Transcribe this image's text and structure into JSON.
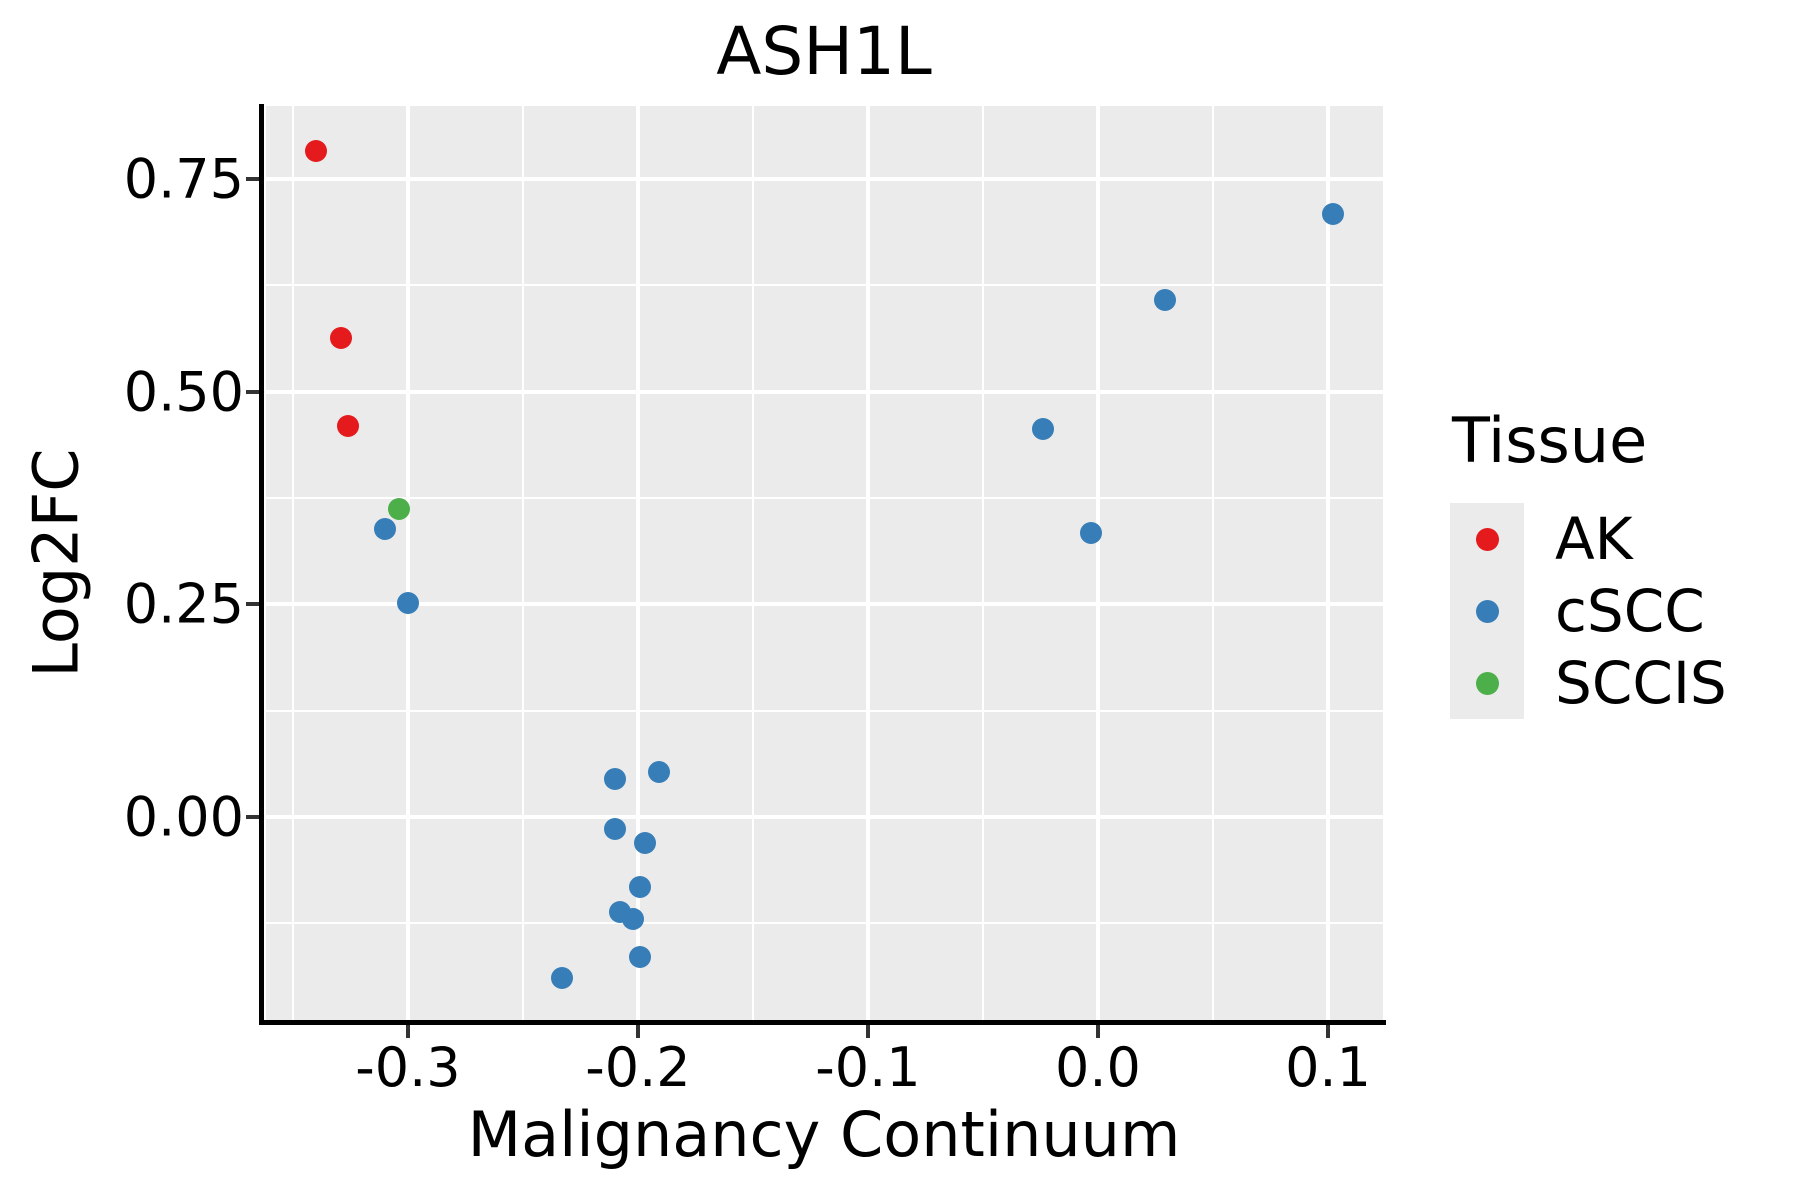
{
  "title": "ASH1L",
  "colors": {
    "panel_background": "#EBEBEB",
    "gridline": "#FFFFFF",
    "axis_line": "#000000",
    "tick_mark": "#333333",
    "text": "#000000",
    "ak_red": "#E41A1C",
    "cscc_blue": "#377EB8",
    "sccis_green": "#4DAF4A"
  },
  "axes": {
    "x": {
      "title": "Malignancy Continuum",
      "tick_labels": [
        "-0.3",
        "-0.2",
        "-0.1",
        "0.0",
        "0.1"
      ],
      "tick_values": [
        -0.3,
        -0.2,
        -0.1,
        0.0,
        0.1
      ],
      "minor_values": [
        -0.35,
        -0.25,
        -0.15,
        -0.05,
        0.05
      ]
    },
    "y": {
      "title": "Log2FC",
      "tick_labels": [
        "0.00",
        "0.25",
        "0.50",
        "0.75"
      ],
      "tick_values": [
        0.0,
        0.25,
        0.5,
        0.75
      ],
      "minor_values": [
        -0.125,
        0.125,
        0.375,
        0.625
      ]
    }
  },
  "legend": {
    "title": "Tissue",
    "entries": [
      {
        "label": "AK",
        "color": "#E41A1C"
      },
      {
        "label": "cSCC",
        "color": "#377EB8"
      },
      {
        "label": "SCCIS",
        "color": "#4DAF4A"
      }
    ]
  },
  "chart_data": {
    "type": "scatter",
    "title": "ASH1L",
    "xlabel": "Malignancy Continuum",
    "ylabel": "Log2FC",
    "xlim": [
      -0.3617,
      0.1239
    ],
    "ylim": [
      -0.2385,
      0.8355
    ],
    "grid": true,
    "legend_position": "right",
    "legend_title": "Tissue",
    "series": [
      {
        "name": "cSCC",
        "color": "#377EB8",
        "points": [
          [
            -0.31,
            0.339
          ],
          [
            -0.3,
            0.251
          ],
          [
            -0.233,
            -0.189
          ],
          [
            -0.21,
            0.045
          ],
          [
            -0.21,
            -0.014
          ],
          [
            -0.202,
            -0.12
          ],
          [
            -0.208,
            -0.112
          ],
          [
            -0.199,
            -0.082
          ],
          [
            -0.199,
            -0.164
          ],
          [
            -0.197,
            -0.031
          ],
          [
            -0.191,
            0.053
          ],
          [
            -0.024,
            0.456
          ],
          [
            -0.003,
            0.334
          ],
          [
            0.029,
            0.608
          ],
          [
            0.102,
            0.709
          ]
        ]
      },
      {
        "name": "AK",
        "color": "#E41A1C",
        "points": [
          [
            -0.34,
            0.783
          ],
          [
            -0.329,
            0.563
          ],
          [
            -0.326,
            0.46
          ]
        ]
      },
      {
        "name": "SCCIS",
        "color": "#4DAF4A",
        "points": [
          [
            -0.304,
            0.362
          ]
        ]
      }
    ]
  }
}
